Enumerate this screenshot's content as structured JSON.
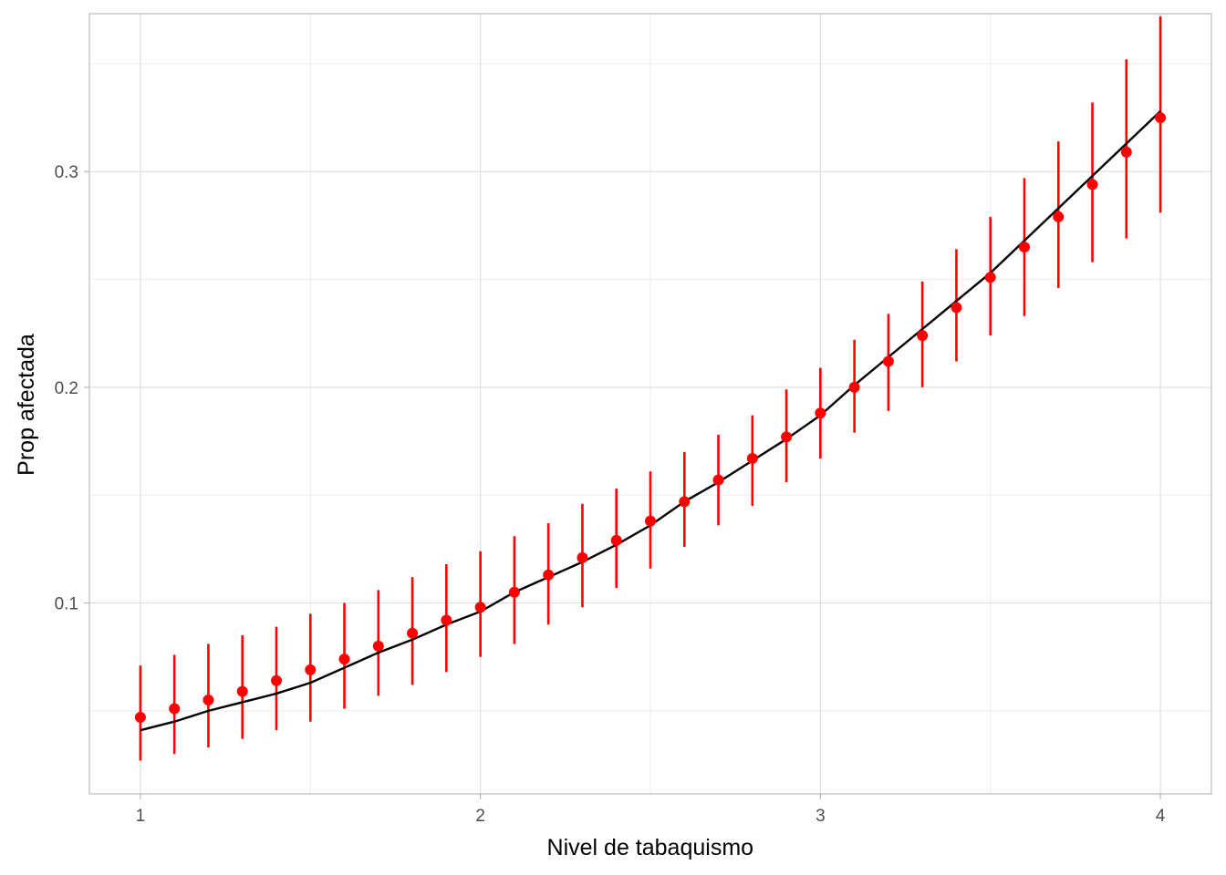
{
  "chart_data": {
    "type": "scatter",
    "title": "",
    "xlabel": "Nivel de tabaquismo",
    "ylabel": "Prop afectada",
    "xlim": [
      0.85,
      4.15
    ],
    "ylim": [
      0.0115,
      0.3732
    ],
    "x_ticks": [
      1,
      2,
      3,
      4
    ],
    "x_tick_labels": [
      "1",
      "2",
      "3",
      "4"
    ],
    "y_ticks": [
      0.1,
      0.2,
      0.3
    ],
    "y_tick_labels": [
      "0.1",
      "0.2",
      "0.3"
    ],
    "grid": true,
    "legend": "none",
    "series": [
      {
        "kind": "points_with_errorbars",
        "color": "#ff0000",
        "x": [
          1.0,
          1.1,
          1.2,
          1.3,
          1.4,
          1.5,
          1.6,
          1.7,
          1.8,
          1.9,
          2.0,
          2.1,
          2.2,
          2.3,
          2.4,
          2.5,
          2.6,
          2.7,
          2.8,
          2.9,
          3.0,
          3.1,
          3.2,
          3.3,
          3.4,
          3.5,
          3.6,
          3.7,
          3.8,
          3.9,
          4.0
        ],
        "y": [
          0.047,
          0.051,
          0.055,
          0.059,
          0.064,
          0.069,
          0.074,
          0.08,
          0.086,
          0.092,
          0.098,
          0.105,
          0.113,
          0.121,
          0.129,
          0.138,
          0.147,
          0.157,
          0.167,
          0.177,
          0.188,
          0.2,
          0.212,
          0.224,
          0.237,
          0.251,
          0.265,
          0.279,
          0.294,
          0.309,
          0.325
        ],
        "lower": [
          0.027,
          0.03,
          0.033,
          0.037,
          0.041,
          0.045,
          0.051,
          0.057,
          0.062,
          0.068,
          0.075,
          0.081,
          0.09,
          0.098,
          0.107,
          0.116,
          0.126,
          0.136,
          0.145,
          0.156,
          0.167,
          0.179,
          0.189,
          0.2,
          0.212,
          0.224,
          0.233,
          0.246,
          0.258,
          0.269,
          0.281
        ],
        "upper": [
          0.071,
          0.076,
          0.081,
          0.085,
          0.089,
          0.095,
          0.1,
          0.106,
          0.112,
          0.118,
          0.124,
          0.131,
          0.137,
          0.146,
          0.153,
          0.161,
          0.17,
          0.178,
          0.187,
          0.199,
          0.209,
          0.222,
          0.234,
          0.249,
          0.264,
          0.279,
          0.297,
          0.314,
          0.332,
          0.352,
          0.372
        ]
      },
      {
        "kind": "line",
        "color": "#000000",
        "x": [
          1.0,
          1.1,
          1.2,
          1.3,
          1.4,
          1.5,
          1.6,
          1.7,
          1.8,
          1.9,
          2.0,
          2.1,
          2.2,
          2.3,
          2.4,
          2.5,
          2.6,
          2.7,
          2.8,
          2.9,
          3.0,
          3.1,
          3.2,
          3.3,
          3.4,
          3.5,
          3.6,
          3.7,
          3.8,
          3.9,
          4.0
        ],
        "y": [
          0.041,
          0.045,
          0.05,
          0.054,
          0.058,
          0.063,
          0.07,
          0.077,
          0.083,
          0.09,
          0.096,
          0.105,
          0.112,
          0.119,
          0.127,
          0.136,
          0.147,
          0.156,
          0.166,
          0.176,
          0.187,
          0.201,
          0.214,
          0.227,
          0.24,
          0.253,
          0.268,
          0.283,
          0.298,
          0.313,
          0.328
        ]
      }
    ]
  }
}
